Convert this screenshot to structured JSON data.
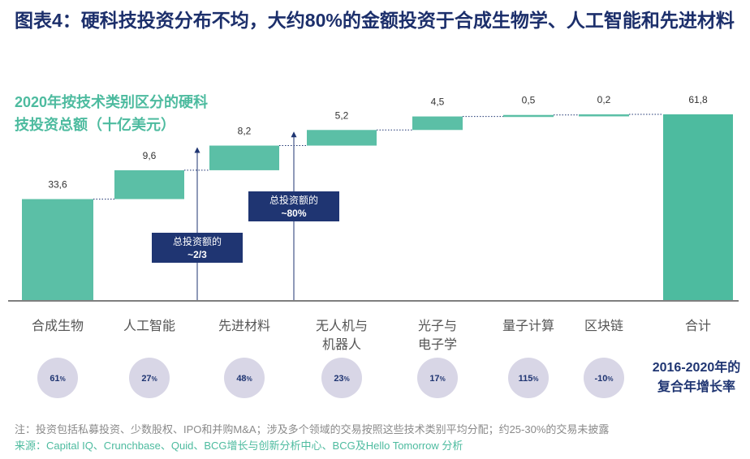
{
  "header": {
    "title": "图表4：硬科技投资分布不均，大约80%的金额投资于合成生物学、人工智能和先进材料",
    "subtitle_line1": "2020年按技术类别区分的硬科",
    "subtitle_line2": "技投资总额（十亿美元）"
  },
  "chart_data": {
    "type": "bar",
    "variant": "waterfall",
    "categories": [
      [
        "合成生物"
      ],
      [
        "人工智能"
      ],
      [
        "先进材料"
      ],
      [
        "无人机与",
        "机器人"
      ],
      [
        "光子与",
        "电子学"
      ],
      [
        "量子计算"
      ],
      [
        "区块链"
      ],
      [
        "合计"
      ]
    ],
    "values": [
      33.6,
      9.6,
      8.2,
      5.2,
      4.5,
      0.5,
      0.2,
      61.8
    ],
    "value_labels": [
      "33,6",
      "9,6",
      "8,2",
      "5,2",
      "4,5",
      "0,5",
      "0,2",
      "61,8"
    ],
    "growth_rates": [
      "61%",
      "27%",
      "48%",
      "23%",
      "17%",
      "115%",
      "-10%"
    ],
    "growth_label_line1": "2016-2020年的",
    "growth_label_line2": "复合年增长率",
    "annotations": [
      {
        "line1": "总投资额的",
        "line2": "~2/3",
        "after_category_index": 2
      },
      {
        "line1": "总投资额的",
        "line2": "~80%",
        "after_category_index": 3
      }
    ],
    "ylim": [
      0,
      61.8
    ],
    "grid": false,
    "colors": {
      "bar": "#5bbfa6",
      "total_bar": "#4dbb9f",
      "annotation_box": "#1f3572",
      "circle": "#d8d6e6",
      "axis": "#555555"
    }
  },
  "footer": {
    "note": "注：投资包括私募投资、少数股权、IPO和并购M&A；涉及多个领域的交易按照这些技术类别平均分配；约25-30%的交易未披露",
    "source": "来源：Capital IQ、Crunchbase、Quid、BCG增长与创新分析中心、BCG及Hello Tomorrow 分析"
  }
}
